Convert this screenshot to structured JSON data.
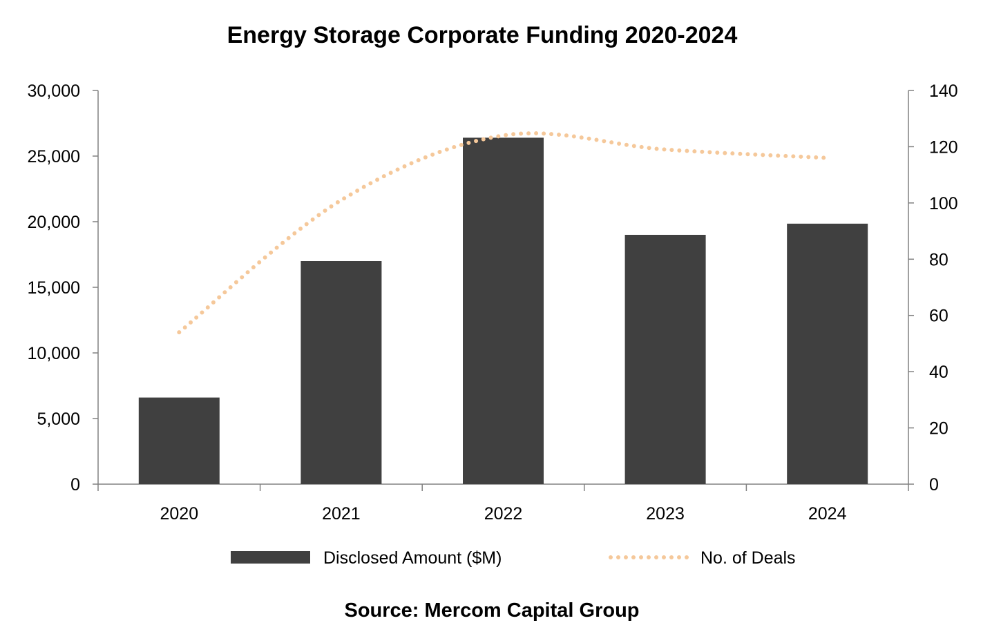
{
  "chart_data": {
    "type": "bar",
    "title": "Energy Storage Corporate Funding 2020-2024",
    "categories": [
      "2020",
      "2021",
      "2022",
      "2023",
      "2024"
    ],
    "series": [
      {
        "name": "Disclosed Amount ($M)",
        "type": "bar",
        "axis": "left",
        "color": "#404040",
        "values": [
          6600,
          17000,
          26400,
          19000,
          19850
        ]
      },
      {
        "name": "No. of Deals",
        "type": "line",
        "axis": "right",
        "style": "dotted",
        "color": "#f5c89a",
        "values": [
          54,
          101,
          124,
          119,
          116
        ]
      }
    ],
    "y_left": {
      "min": 0,
      "max": 30000,
      "ticks": [
        "0",
        "5,000",
        "10,000",
        "15,000",
        "20,000",
        "25,000",
        "30,000"
      ]
    },
    "y_right": {
      "min": 0,
      "max": 140,
      "ticks": [
        "0",
        "20",
        "40",
        "60",
        "80",
        "100",
        "120",
        "140"
      ]
    },
    "grid": false,
    "legend_position": "bottom",
    "source": "Source: Mercom Capital Group"
  }
}
